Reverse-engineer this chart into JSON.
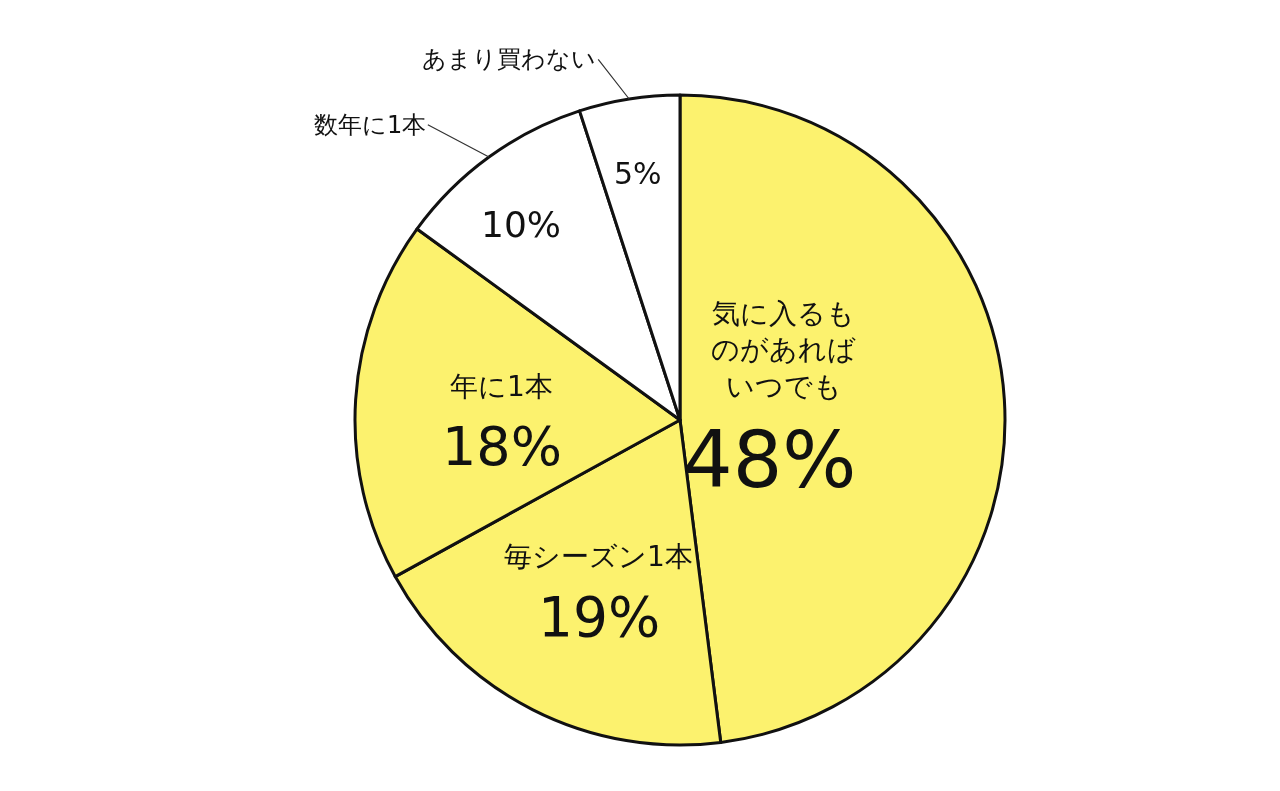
{
  "chart_data": {
    "type": "pie",
    "categories": [
      "気に入るものがあればいつでも",
      "毎シーズン1本",
      "年に1本",
      "数年に1本",
      "あまり買わない"
    ],
    "values": [
      48,
      19,
      18,
      10,
      5
    ],
    "value_labels": [
      "48%",
      "19%",
      "18%",
      "10%",
      "5%"
    ],
    "colors": [
      "#fcf26e",
      "#fcf26e",
      "#fcf26e",
      "#ffffff",
      "#ffffff"
    ],
    "legend": false
  }
}
